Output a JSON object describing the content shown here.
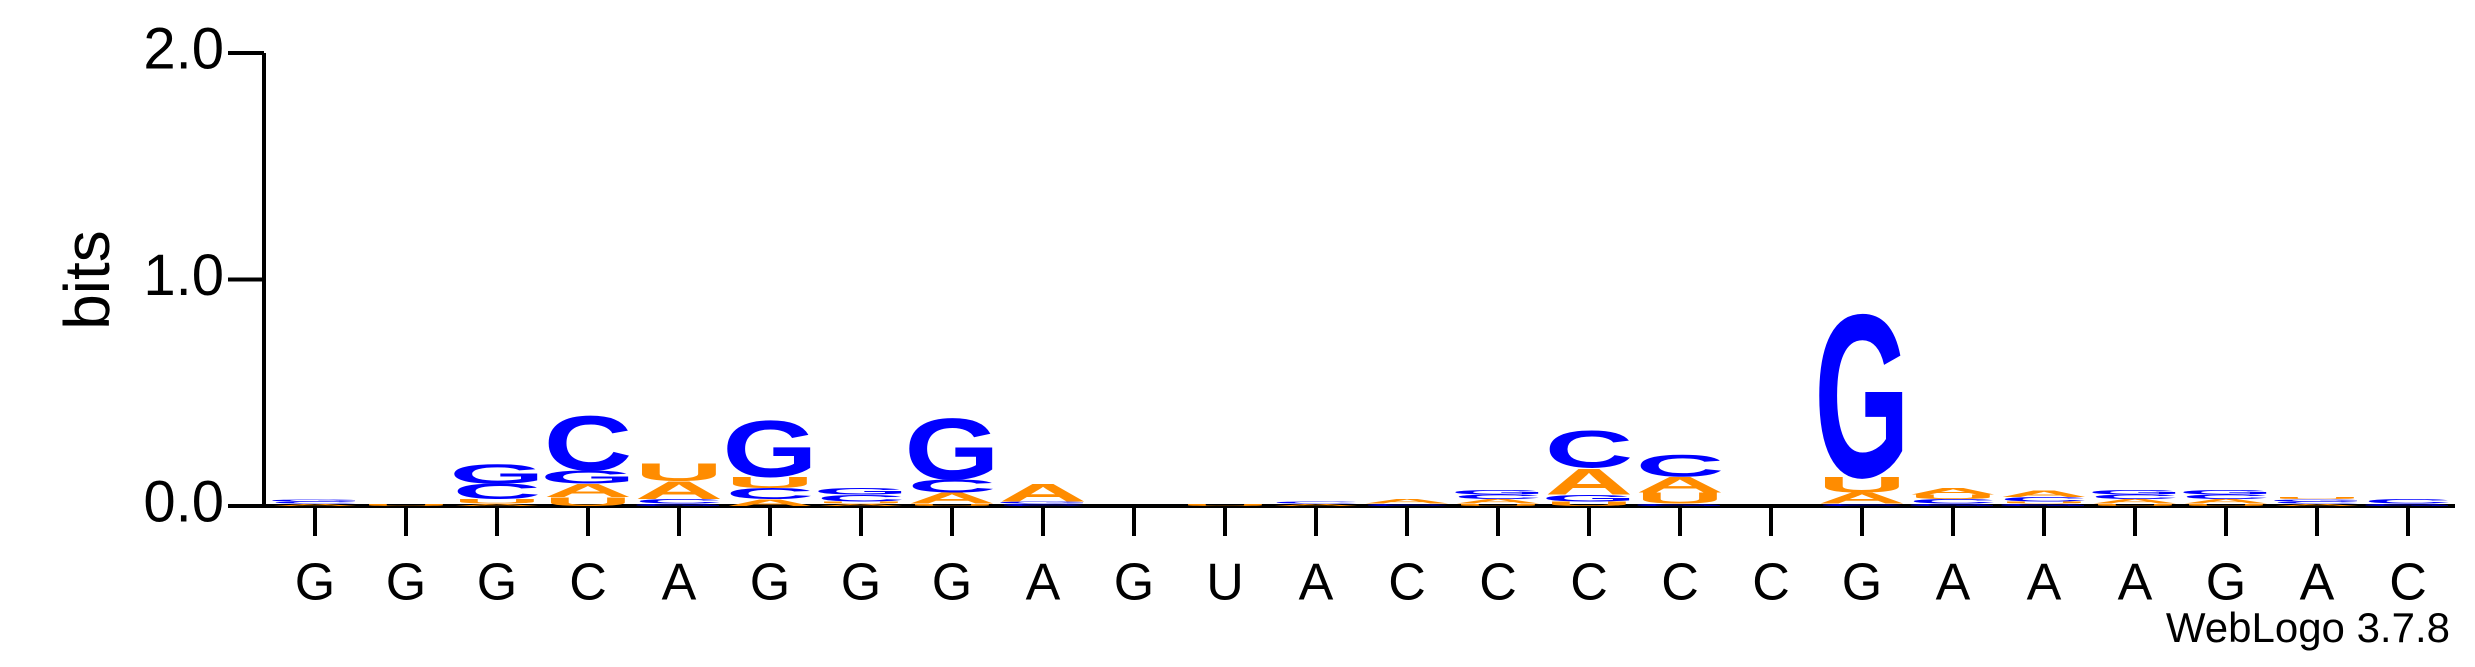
{
  "chart_data": {
    "type": "logo",
    "ylabel": "bits",
    "footer": "WebLogo 3.7.8",
    "categories": [
      "G",
      "G",
      "G",
      "C",
      "A",
      "G",
      "G",
      "G",
      "A",
      "G",
      "U",
      "A",
      "C",
      "C",
      "C",
      "C",
      "C",
      "G",
      "A",
      "A",
      "A",
      "G",
      "A",
      "C"
    ],
    "ylim": [
      0,
      2
    ],
    "yticks": [
      {
        "value": 0,
        "label": "0.0"
      },
      {
        "value": 1,
        "label": "1.0"
      },
      {
        "value": 2,
        "label": "2.0"
      }
    ],
    "series": [
      {
        "name": "A",
        "color": "#ff8c00",
        "values": [
          0.01,
          0,
          0.01,
          0.06,
          0.08,
          0.03,
          0.01,
          0.05,
          0.08,
          0,
          0,
          0.01,
          0.02,
          0.02,
          0.12,
          0.07,
          0,
          0.05,
          0.03,
          0.03,
          0.02,
          0.02,
          0.01,
          0
        ]
      },
      {
        "name": "C",
        "color": "#0000ff",
        "values": [
          0.01,
          0,
          0.07,
          0.25,
          0.02,
          0.05,
          0.03,
          0.06,
          0.01,
          0,
          0,
          0.01,
          0.01,
          0.02,
          0.17,
          0.1,
          0,
          0.01,
          0.02,
          0.02,
          0.02,
          0.02,
          0.01,
          0.02
        ]
      },
      {
        "name": "G",
        "color": "#0000ff",
        "values": [
          0.01,
          0,
          0.09,
          0.06,
          0.01,
          0.26,
          0.03,
          0.28,
          0.01,
          0,
          0,
          0,
          0,
          0.02,
          0.03,
          0.01,
          0,
          0.75,
          0.01,
          0.01,
          0.02,
          0.02,
          0.01,
          0.01
        ]
      },
      {
        "name": "U",
        "color": "#ff8c00",
        "values": [
          0,
          0.01,
          0.02,
          0.04,
          0.08,
          0.05,
          0.01,
          0.01,
          0,
          0,
          0.01,
          0,
          0,
          0.01,
          0.02,
          0.05,
          0,
          0.07,
          0.02,
          0.01,
          0.01,
          0.01,
          0.01,
          0
        ]
      }
    ]
  }
}
